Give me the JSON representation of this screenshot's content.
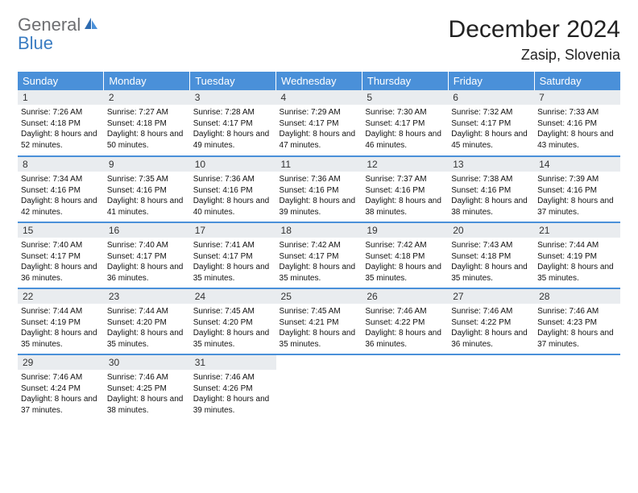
{
  "brand": {
    "general": "General",
    "blue": "Blue"
  },
  "title": "December 2024",
  "location": "Zasip, Slovenia",
  "colors": {
    "header_bg": "#4a90d9",
    "header_text": "#ffffff",
    "daynum_bg": "#e9ecef",
    "border": "#4a90d9",
    "logo_gray": "#6d6e71",
    "logo_blue": "#3a7cc2"
  },
  "weekdays": [
    "Sunday",
    "Monday",
    "Tuesday",
    "Wednesday",
    "Thursday",
    "Friday",
    "Saturday"
  ],
  "days": [
    {
      "n": "1",
      "sunrise": "7:26 AM",
      "sunset": "4:18 PM",
      "dl": "8 hours and 52 minutes."
    },
    {
      "n": "2",
      "sunrise": "7:27 AM",
      "sunset": "4:18 PM",
      "dl": "8 hours and 50 minutes."
    },
    {
      "n": "3",
      "sunrise": "7:28 AM",
      "sunset": "4:17 PM",
      "dl": "8 hours and 49 minutes."
    },
    {
      "n": "4",
      "sunrise": "7:29 AM",
      "sunset": "4:17 PM",
      "dl": "8 hours and 47 minutes."
    },
    {
      "n": "5",
      "sunrise": "7:30 AM",
      "sunset": "4:17 PM",
      "dl": "8 hours and 46 minutes."
    },
    {
      "n": "6",
      "sunrise": "7:32 AM",
      "sunset": "4:17 PM",
      "dl": "8 hours and 45 minutes."
    },
    {
      "n": "7",
      "sunrise": "7:33 AM",
      "sunset": "4:16 PM",
      "dl": "8 hours and 43 minutes."
    },
    {
      "n": "8",
      "sunrise": "7:34 AM",
      "sunset": "4:16 PM",
      "dl": "8 hours and 42 minutes."
    },
    {
      "n": "9",
      "sunrise": "7:35 AM",
      "sunset": "4:16 PM",
      "dl": "8 hours and 41 minutes."
    },
    {
      "n": "10",
      "sunrise": "7:36 AM",
      "sunset": "4:16 PM",
      "dl": "8 hours and 40 minutes."
    },
    {
      "n": "11",
      "sunrise": "7:36 AM",
      "sunset": "4:16 PM",
      "dl": "8 hours and 39 minutes."
    },
    {
      "n": "12",
      "sunrise": "7:37 AM",
      "sunset": "4:16 PM",
      "dl": "8 hours and 38 minutes."
    },
    {
      "n": "13",
      "sunrise": "7:38 AM",
      "sunset": "4:16 PM",
      "dl": "8 hours and 38 minutes."
    },
    {
      "n": "14",
      "sunrise": "7:39 AM",
      "sunset": "4:16 PM",
      "dl": "8 hours and 37 minutes."
    },
    {
      "n": "15",
      "sunrise": "7:40 AM",
      "sunset": "4:17 PM",
      "dl": "8 hours and 36 minutes."
    },
    {
      "n": "16",
      "sunrise": "7:40 AM",
      "sunset": "4:17 PM",
      "dl": "8 hours and 36 minutes."
    },
    {
      "n": "17",
      "sunrise": "7:41 AM",
      "sunset": "4:17 PM",
      "dl": "8 hours and 35 minutes."
    },
    {
      "n": "18",
      "sunrise": "7:42 AM",
      "sunset": "4:17 PM",
      "dl": "8 hours and 35 minutes."
    },
    {
      "n": "19",
      "sunrise": "7:42 AM",
      "sunset": "4:18 PM",
      "dl": "8 hours and 35 minutes."
    },
    {
      "n": "20",
      "sunrise": "7:43 AM",
      "sunset": "4:18 PM",
      "dl": "8 hours and 35 minutes."
    },
    {
      "n": "21",
      "sunrise": "7:44 AM",
      "sunset": "4:19 PM",
      "dl": "8 hours and 35 minutes."
    },
    {
      "n": "22",
      "sunrise": "7:44 AM",
      "sunset": "4:19 PM",
      "dl": "8 hours and 35 minutes."
    },
    {
      "n": "23",
      "sunrise": "7:44 AM",
      "sunset": "4:20 PM",
      "dl": "8 hours and 35 minutes."
    },
    {
      "n": "24",
      "sunrise": "7:45 AM",
      "sunset": "4:20 PM",
      "dl": "8 hours and 35 minutes."
    },
    {
      "n": "25",
      "sunrise": "7:45 AM",
      "sunset": "4:21 PM",
      "dl": "8 hours and 35 minutes."
    },
    {
      "n": "26",
      "sunrise": "7:46 AM",
      "sunset": "4:22 PM",
      "dl": "8 hours and 36 minutes."
    },
    {
      "n": "27",
      "sunrise": "7:46 AM",
      "sunset": "4:22 PM",
      "dl": "8 hours and 36 minutes."
    },
    {
      "n": "28",
      "sunrise": "7:46 AM",
      "sunset": "4:23 PM",
      "dl": "8 hours and 37 minutes."
    },
    {
      "n": "29",
      "sunrise": "7:46 AM",
      "sunset": "4:24 PM",
      "dl": "8 hours and 37 minutes."
    },
    {
      "n": "30",
      "sunrise": "7:46 AM",
      "sunset": "4:25 PM",
      "dl": "8 hours and 38 minutes."
    },
    {
      "n": "31",
      "sunrise": "7:46 AM",
      "sunset": "4:26 PM",
      "dl": "8 hours and 39 minutes."
    }
  ],
  "labels": {
    "sunrise": "Sunrise:",
    "sunset": "Sunset:",
    "daylight": "Daylight:"
  }
}
